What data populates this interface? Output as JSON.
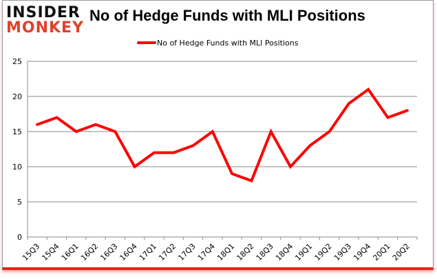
{
  "logo": {
    "line1": "INSIDER",
    "line2": "MONKEY"
  },
  "chart_data": {
    "type": "line",
    "title": "No of Hedge Funds with MLI Positions",
    "xlabel": "",
    "ylabel": "",
    "categories": [
      "15Q3",
      "15Q4",
      "16Q1",
      "16Q2",
      "16Q3",
      "16Q4",
      "17Q1",
      "17Q2",
      "17Q3",
      "17Q4",
      "18Q1",
      "18Q2",
      "18Q3",
      "18Q4",
      "19Q1",
      "19Q2",
      "19Q3",
      "19Q4",
      "20Q1",
      "20Q2"
    ],
    "series": [
      {
        "name": "No of Hedge Funds with MLI Positions",
        "values": [
          16,
          17,
          15,
          16,
          15,
          10,
          12,
          12,
          13,
          15,
          9,
          8,
          15,
          10,
          13,
          15,
          19,
          21,
          17,
          18
        ],
        "color": "#ff0000"
      }
    ],
    "ylim": [
      0,
      25
    ],
    "yticks": [
      0,
      5,
      10,
      15,
      20,
      25
    ],
    "grid": true,
    "legend": "top-center"
  }
}
